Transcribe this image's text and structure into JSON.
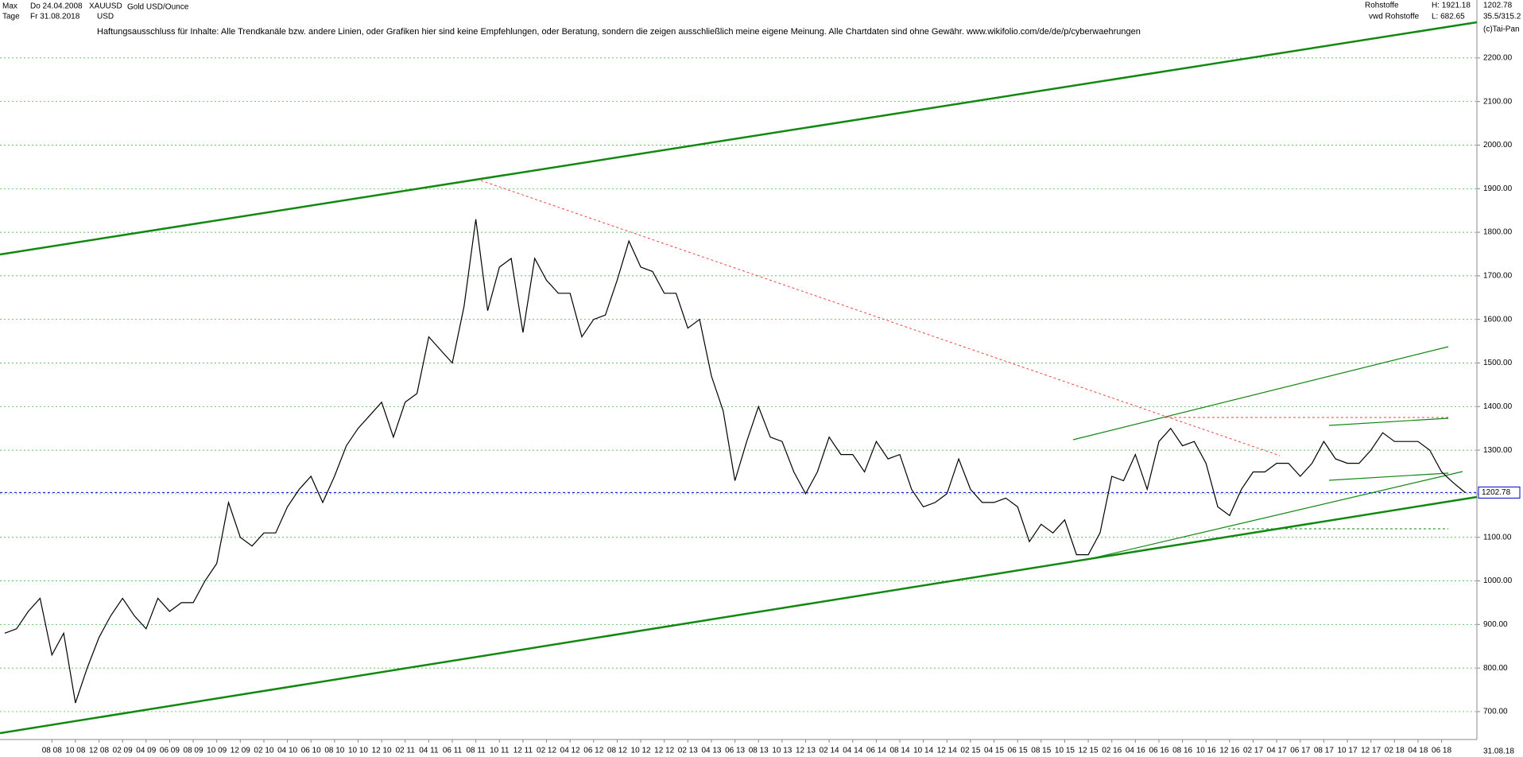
{
  "header": {
    "range": "Max",
    "date_from": "Do 24.04.2008",
    "interval": "Tage",
    "date_to": "Fr 31.08.2018",
    "symbol": "XAUUSD",
    "currency": "USD",
    "instrument": "Gold USD/Ounce",
    "group": "Rohstoffe",
    "source": "vwd Rohstoffe",
    "high": "H: 1921.18",
    "low": "L: 682.65",
    "ratio": "35.5/315.2",
    "copyright": "(c)Tai-Pan",
    "disclaimer": "Haftungsausschluss für Inhalte: Alle Trendkanäle bzw. andere Linien, oder Grafiken hier sind keine Empfehlungen, oder Beratung, sondern die zeigen ausschließlich meine eigene Meinung. Alle Chartdaten sind ohne Gewähr.  www.wikifolio.com/de/de/p/cyberwaehrungen",
    "end_date": "31.08.18"
  },
  "chart_data": {
    "type": "line",
    "last_price": 1202.78,
    "x": [
      "2008-04",
      "2008-05",
      "2008-06",
      "2008-07",
      "2008-08",
      "2008-09",
      "2008-10",
      "2008-11",
      "2008-12",
      "2009-01",
      "2009-02",
      "2009-03",
      "2009-04",
      "2009-05",
      "2009-06",
      "2009-07",
      "2009-08",
      "2009-09",
      "2009-10",
      "2009-11",
      "2009-12",
      "2010-01",
      "2010-02",
      "2010-03",
      "2010-04",
      "2010-05",
      "2010-06",
      "2010-07",
      "2010-08",
      "2010-09",
      "2010-10",
      "2010-11",
      "2010-12",
      "2011-01",
      "2011-02",
      "2011-03",
      "2011-04",
      "2011-05",
      "2011-06",
      "2011-07",
      "2011-08",
      "2011-09",
      "2011-10",
      "2011-11",
      "2011-12",
      "2012-01",
      "2012-02",
      "2012-03",
      "2012-04",
      "2012-05",
      "2012-06",
      "2012-07",
      "2012-08",
      "2012-09",
      "2012-10",
      "2012-11",
      "2012-12",
      "2013-01",
      "2013-02",
      "2013-03",
      "2013-04",
      "2013-05",
      "2013-06",
      "2013-07",
      "2013-08",
      "2013-09",
      "2013-10",
      "2013-11",
      "2013-12",
      "2014-01",
      "2014-02",
      "2014-03",
      "2014-04",
      "2014-05",
      "2014-06",
      "2014-07",
      "2014-08",
      "2014-09",
      "2014-10",
      "2014-11",
      "2014-12",
      "2015-01",
      "2015-02",
      "2015-03",
      "2015-04",
      "2015-05",
      "2015-06",
      "2015-07",
      "2015-08",
      "2015-09",
      "2015-10",
      "2015-11",
      "2015-12",
      "2016-01",
      "2016-02",
      "2016-03",
      "2016-04",
      "2016-05",
      "2016-06",
      "2016-07",
      "2016-08",
      "2016-09",
      "2016-10",
      "2016-11",
      "2016-12",
      "2017-01",
      "2017-02",
      "2017-03",
      "2017-04",
      "2017-05",
      "2017-06",
      "2017-07",
      "2017-08",
      "2017-09",
      "2017-10",
      "2017-11",
      "2017-12",
      "2018-01",
      "2018-02",
      "2018-03",
      "2018-04",
      "2018-05",
      "2018-06",
      "2018-07",
      "2018-08"
    ],
    "series": [
      {
        "name": "XAUUSD",
        "color": "#000000",
        "values": [
          880,
          890,
          930,
          960,
          830,
          880,
          720,
          800,
          870,
          920,
          960,
          920,
          890,
          960,
          930,
          950,
          950,
          1000,
          1040,
          1180,
          1100,
          1080,
          1110,
          1110,
          1170,
          1210,
          1240,
          1180,
          1240,
          1310,
          1350,
          1380,
          1410,
          1330,
          1410,
          1430,
          1560,
          1530,
          1500,
          1630,
          1830,
          1620,
          1720,
          1740,
          1570,
          1740,
          1690,
          1660,
          1660,
          1560,
          1600,
          1610,
          1690,
          1780,
          1720,
          1710,
          1660,
          1660,
          1580,
          1600,
          1470,
          1390,
          1230,
          1320,
          1400,
          1330,
          1320,
          1250,
          1200,
          1250,
          1330,
          1290,
          1290,
          1250,
          1320,
          1280,
          1290,
          1210,
          1170,
          1180,
          1200,
          1280,
          1210,
          1180,
          1180,
          1190,
          1170,
          1090,
          1130,
          1110,
          1140,
          1060,
          1060,
          1110,
          1240,
          1230,
          1290,
          1210,
          1320,
          1350,
          1310,
          1320,
          1270,
          1170,
          1150,
          1210,
          1250,
          1250,
          1270,
          1270,
          1240,
          1270,
          1320,
          1280,
          1270,
          1270,
          1300,
          1340,
          1320,
          1320,
          1320,
          1300,
          1250,
          1225,
          1202.78
        ]
      }
    ],
    "xlim": [
      "2008-04",
      "2018-09"
    ],
    "xticks": [
      {
        "value": "2008-08",
        "label": "08 08"
      },
      {
        "value": "2008-10",
        "label": "10 08"
      },
      {
        "value": "2008-12",
        "label": "12 08"
      },
      {
        "value": "2009-02",
        "label": "02 09"
      },
      {
        "value": "2009-04",
        "label": "04 09"
      },
      {
        "value": "2009-06",
        "label": "06 09"
      },
      {
        "value": "2009-08",
        "label": "08 09"
      },
      {
        "value": "2009-10",
        "label": "10 09"
      },
      {
        "value": "2009-12",
        "label": "12 09"
      },
      {
        "value": "2010-02",
        "label": "02 10"
      },
      {
        "value": "2010-04",
        "label": "04 10"
      },
      {
        "value": "2010-06",
        "label": "06 10"
      },
      {
        "value": "2010-08",
        "label": "08 10"
      },
      {
        "value": "2010-10",
        "label": "10 10"
      },
      {
        "value": "2010-12",
        "label": "12 10"
      },
      {
        "value": "2011-02",
        "label": "02 11"
      },
      {
        "value": "2011-04",
        "label": "04 11"
      },
      {
        "value": "2011-06",
        "label": "06 11"
      },
      {
        "value": "2011-08",
        "label": "08 11"
      },
      {
        "value": "2011-10",
        "label": "10 11"
      },
      {
        "value": "2011-12",
        "label": "12 11"
      },
      {
        "value": "2012-02",
        "label": "02 12"
      },
      {
        "value": "2012-04",
        "label": "04 12"
      },
      {
        "value": "2012-06",
        "label": "06 12"
      },
      {
        "value": "2012-08",
        "label": "08 12"
      },
      {
        "value": "2012-10",
        "label": "10 12"
      },
      {
        "value": "2012-12",
        "label": "12 12"
      },
      {
        "value": "2013-02",
        "label": "02 13"
      },
      {
        "value": "2013-04",
        "label": "04 13"
      },
      {
        "value": "2013-06",
        "label": "06 13"
      },
      {
        "value": "2013-08",
        "label": "08 13"
      },
      {
        "value": "2013-10",
        "label": "10 13"
      },
      {
        "value": "2013-12",
        "label": "12 13"
      },
      {
        "value": "2014-02",
        "label": "02 14"
      },
      {
        "value": "2014-04",
        "label": "04 14"
      },
      {
        "value": "2014-06",
        "label": "06 14"
      },
      {
        "value": "2014-08",
        "label": "08 14"
      },
      {
        "value": "2014-10",
        "label": "10 14"
      },
      {
        "value": "2014-12",
        "label": "12 14"
      },
      {
        "value": "2015-02",
        "label": "02 15"
      },
      {
        "value": "2015-04",
        "label": "04 15"
      },
      {
        "value": "2015-06",
        "label": "06 15"
      },
      {
        "value": "2015-08",
        "label": "08 15"
      },
      {
        "value": "2015-10",
        "label": "10 15"
      },
      {
        "value": "2015-12",
        "label": "12 15"
      },
      {
        "value": "2016-02",
        "label": "02 16"
      },
      {
        "value": "2016-04",
        "label": "04 16"
      },
      {
        "value": "2016-06",
        "label": "06 16"
      },
      {
        "value": "2016-08",
        "label": "08 16"
      },
      {
        "value": "2016-10",
        "label": "10 16"
      },
      {
        "value": "2016-12",
        "label": "12 16"
      },
      {
        "value": "2017-02",
        "label": "02 17"
      },
      {
        "value": "2017-04",
        "label": "04 17"
      },
      {
        "value": "2017-06",
        "label": "06 17"
      },
      {
        "value": "2017-08",
        "label": "08 17"
      },
      {
        "value": "2017-10",
        "label": "10 17"
      },
      {
        "value": "2017-12",
        "label": "12 17"
      },
      {
        "value": "2018-02",
        "label": "02 18"
      },
      {
        "value": "2018-04",
        "label": "04 18"
      },
      {
        "value": "2018-06",
        "label": "06 18"
      }
    ],
    "ylim": [
      636,
      2333
    ],
    "yticks": [
      {
        "value": 700,
        "label": "700.00"
      },
      {
        "value": 800,
        "label": "800.00"
      },
      {
        "value": 900,
        "label": "900.00"
      },
      {
        "value": 1000,
        "label": "1000.00"
      },
      {
        "value": 1100,
        "label": "1100.00"
      },
      {
        "value": 1200,
        "label": "1200.00"
      },
      {
        "value": 1300,
        "label": "1300.00"
      },
      {
        "value": 1400,
        "label": "1400.00"
      },
      {
        "value": 1500,
        "label": "1500.00"
      },
      {
        "value": 1600,
        "label": "1600.00"
      },
      {
        "value": 1700,
        "label": "1700.00"
      },
      {
        "value": 1800,
        "label": "1800.00"
      },
      {
        "value": 1900,
        "label": "1900.00"
      },
      {
        "value": 2000,
        "label": "2000.00"
      },
      {
        "value": 2100,
        "label": "2100.00"
      },
      {
        "value": 2200,
        "label": "2200.00"
      }
    ],
    "grid": true,
    "grid_color": "#33aa33",
    "last_price_color": "#0000cc"
  }
}
